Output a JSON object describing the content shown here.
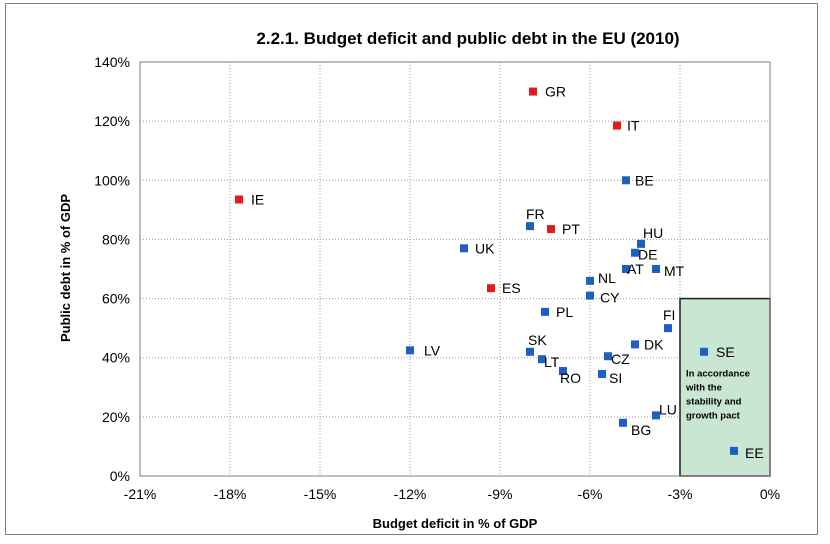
{
  "chart_data": {
    "type": "scatter",
    "title": "2.2.1. Budget deficit and public debt in the EU (2010)",
    "xlabel": "Budget deficit in % of GDP",
    "ylabel": "Public debt in % of GDP",
    "xlim": [
      -21,
      0
    ],
    "ylim": [
      0,
      140
    ],
    "x_ticks": [
      -21,
      -18,
      -15,
      -12,
      -9,
      -6,
      -3,
      0
    ],
    "y_ticks": [
      0,
      20,
      40,
      60,
      80,
      100,
      120,
      140
    ],
    "x_tick_labels": [
      "-21%",
      "-18%",
      "-15%",
      "-12%",
      "-9%",
      "-6%",
      "-3%",
      "0%"
    ],
    "y_tick_labels": [
      "0%",
      "20%",
      "40%",
      "60%",
      "80%",
      "100%",
      "120%",
      "140%"
    ],
    "grid": "horizontal and vertical dotted",
    "colors": {
      "blue": "#1f5fbf",
      "red": "#e21b1b",
      "zone_fill": "#c9e6d2",
      "zone_border": "#1d1d1d"
    },
    "zone": {
      "x": [
        -3,
        0
      ],
      "y": [
        0,
        60
      ],
      "text": [
        "In accordance",
        "with the",
        "stability and",
        "growth pact"
      ]
    },
    "points": [
      {
        "label": "GR",
        "x": -7.9,
        "y": 130,
        "color": "red"
      },
      {
        "label": "IT",
        "x": -5.1,
        "y": 118.5,
        "color": "red"
      },
      {
        "label": "IE",
        "x": -17.7,
        "y": 93.5,
        "color": "red"
      },
      {
        "label": "PT",
        "x": -7.3,
        "y": 83.5,
        "color": "red"
      },
      {
        "label": "ES",
        "x": -9.3,
        "y": 63.5,
        "color": "red"
      },
      {
        "label": "BE",
        "x": -4.8,
        "y": 100,
        "color": "blue"
      },
      {
        "label": "FR",
        "x": -8.0,
        "y": 84.5,
        "color": "blue"
      },
      {
        "label": "HU",
        "x": -4.3,
        "y": 78.5,
        "color": "blue"
      },
      {
        "label": "DE",
        "x": -4.5,
        "y": 75.5,
        "color": "blue"
      },
      {
        "label": "UK",
        "x": -10.2,
        "y": 77,
        "color": "blue"
      },
      {
        "label": "AT",
        "x": -4.8,
        "y": 70,
        "color": "blue"
      },
      {
        "label": "MT",
        "x": -3.8,
        "y": 70,
        "color": "blue"
      },
      {
        "label": "NL",
        "x": -6.0,
        "y": 66,
        "color": "blue"
      },
      {
        "label": "CY",
        "x": -6.0,
        "y": 61,
        "color": "blue"
      },
      {
        "label": "PL",
        "x": -7.5,
        "y": 55.5,
        "color": "blue"
      },
      {
        "label": "FI",
        "x": -3.4,
        "y": 50,
        "color": "blue"
      },
      {
        "label": "DK",
        "x": -4.5,
        "y": 44.5,
        "color": "blue"
      },
      {
        "label": "SE",
        "x": -2.2,
        "y": 42,
        "color": "blue"
      },
      {
        "label": "LV",
        "x": -12.0,
        "y": 42.5,
        "color": "blue"
      },
      {
        "label": "SK",
        "x": -8.0,
        "y": 42,
        "color": "blue"
      },
      {
        "label": "LT",
        "x": -7.6,
        "y": 39.5,
        "color": "blue"
      },
      {
        "label": "CZ",
        "x": -5.4,
        "y": 40.5,
        "color": "blue"
      },
      {
        "label": "RO",
        "x": -6.9,
        "y": 35.5,
        "color": "blue"
      },
      {
        "label": "SI",
        "x": -5.6,
        "y": 34.5,
        "color": "blue"
      },
      {
        "label": "LU",
        "x": -3.8,
        "y": 20.5,
        "color": "blue"
      },
      {
        "label": "BG",
        "x": -4.9,
        "y": 18,
        "color": "blue"
      },
      {
        "label": "EE",
        "x": -1.2,
        "y": 8.5,
        "color": "blue"
      }
    ]
  }
}
